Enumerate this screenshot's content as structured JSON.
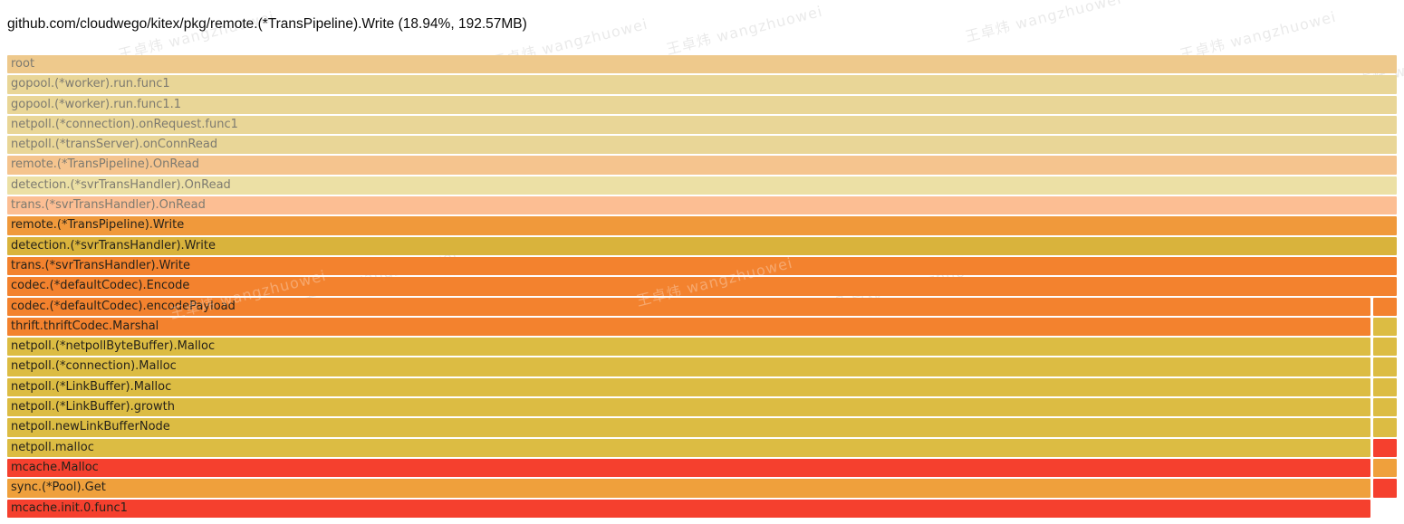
{
  "header": {
    "title": "github.com/cloudwego/kitex/pkg/remote.(*TransPipeline).Write (18.94%, 192.57MB)"
  },
  "watermark": {
    "text": "王卓炜 wangzhuowei"
  },
  "chart_data": {
    "type": "flamegraph",
    "orientation": "icicle-top-down",
    "title": "github.com/cloudwego/kitex/pkg/remote.(*TransPipeline).Write (18.94%, 192.57MB)",
    "selected_frame": {
      "name": "remote.(*TransPipeline).Write",
      "percent": "18.94%",
      "size": "192.57MB"
    },
    "legend_note": "rows above selected frame are faded ancestors; narrow right column is a sibling call path starting at codec.(*defaultCodec).Encode children",
    "rows": [
      {
        "label": "root",
        "bg": "#eec98c",
        "muted": true,
        "split": false,
        "right": null
      },
      {
        "label": "gopool.(*worker).run.func1",
        "bg": "#e9d697",
        "muted": true,
        "split": false,
        "right": null
      },
      {
        "label": "gopool.(*worker).run.func1.1",
        "bg": "#e9d697",
        "muted": true,
        "split": false,
        "right": null
      },
      {
        "label": "netpoll.(*connection).onRequest.func1",
        "bg": "#e9d697",
        "muted": true,
        "split": false,
        "right": null
      },
      {
        "label": "netpoll.(*transServer).onConnRead",
        "bg": "#e9d697",
        "muted": true,
        "split": false,
        "right": null
      },
      {
        "label": "remote.(*TransPipeline).OnRead",
        "bg": "#f5c48e",
        "muted": true,
        "split": false,
        "right": null
      },
      {
        "label": "detection.(*svrTransHandler).OnRead",
        "bg": "#ece0a5",
        "muted": true,
        "split": false,
        "right": null
      },
      {
        "label": "trans.(*svrTransHandler).OnRead",
        "bg": "#fcbe93",
        "muted": true,
        "split": false,
        "right": null
      },
      {
        "label": "remote.(*TransPipeline).Write",
        "bg": "#f0993b",
        "muted": false,
        "split": false,
        "right": null
      },
      {
        "label": "detection.(*svrTransHandler).Write",
        "bg": "#d9b33c",
        "muted": false,
        "split": false,
        "right": null
      },
      {
        "label": "trans.(*svrTransHandler).Write",
        "bg": "#f3822e",
        "muted": false,
        "split": false,
        "right": null
      },
      {
        "label": "codec.(*defaultCodec).Encode",
        "bg": "#f3822e",
        "muted": false,
        "split": false,
        "right": null
      },
      {
        "label": "codec.(*defaultCodec).encodePayload",
        "bg": "#f3822e",
        "muted": false,
        "split": true,
        "right": "#f3822e"
      },
      {
        "label": "thrift.thriftCodec.Marshal",
        "bg": "#f3822e",
        "muted": false,
        "split": true,
        "right": "#dcbc43"
      },
      {
        "label": "netpoll.(*netpollByteBuffer).Malloc",
        "bg": "#dcbc43",
        "muted": false,
        "split": true,
        "right": "#dcbc43"
      },
      {
        "label": "netpoll.(*connection).Malloc",
        "bg": "#dcbc43",
        "muted": false,
        "split": true,
        "right": "#dcbc43"
      },
      {
        "label": "netpoll.(*LinkBuffer).Malloc",
        "bg": "#dcbc43",
        "muted": false,
        "split": true,
        "right": "#dcbc43"
      },
      {
        "label": "netpoll.(*LinkBuffer).growth",
        "bg": "#dcbc43",
        "muted": false,
        "split": true,
        "right": "#dcbc43"
      },
      {
        "label": "netpoll.newLinkBufferNode",
        "bg": "#dcbc43",
        "muted": false,
        "split": true,
        "right": "#dcbc43"
      },
      {
        "label": "netpoll.malloc",
        "bg": "#dcbc43",
        "muted": false,
        "split": true,
        "right": "#f5402e"
      },
      {
        "label": "mcache.Malloc",
        "bg": "#f5402e",
        "muted": false,
        "split": true,
        "right": "#efa03c"
      },
      {
        "label": "sync.(*Pool).Get",
        "bg": "#efa03c",
        "muted": false,
        "split": true,
        "right": "#f5402e"
      },
      {
        "label": "mcache.init.0.func1",
        "bg": "#f5402e",
        "muted": false,
        "split": true,
        "right": null
      }
    ]
  }
}
